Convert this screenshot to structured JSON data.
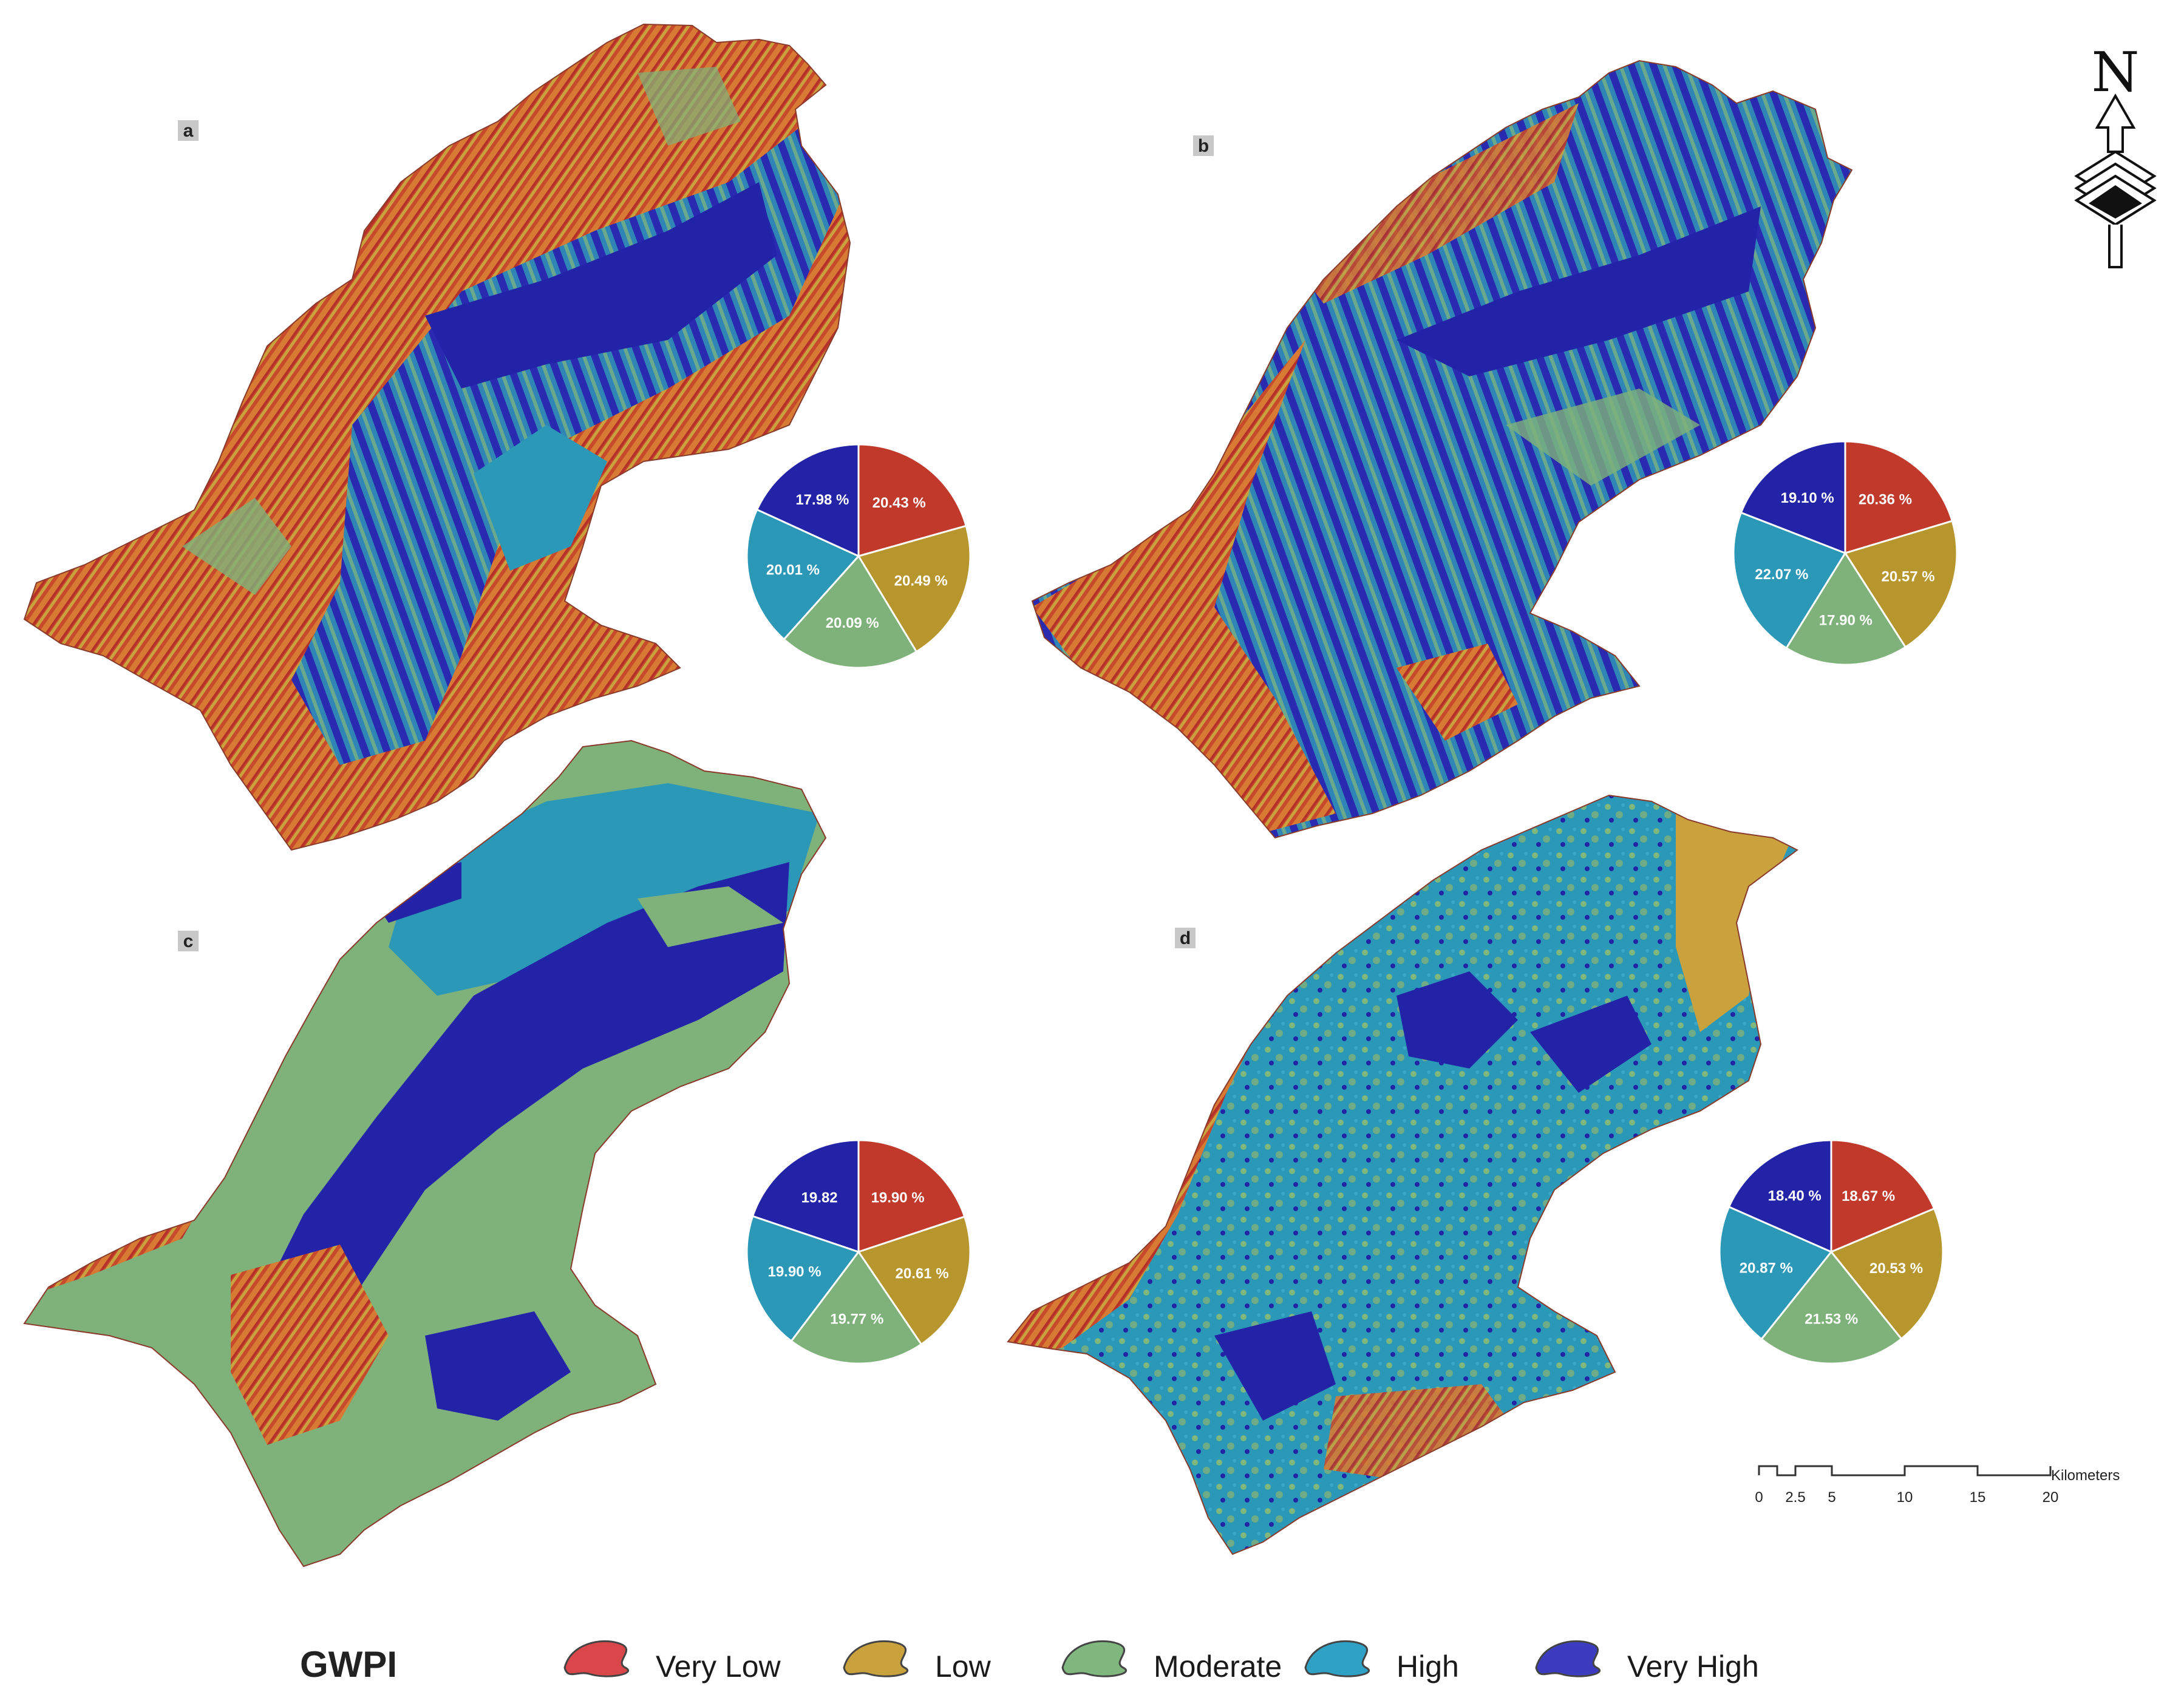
{
  "colors": {
    "very_low": "#c0392b",
    "low": "#b8962e",
    "moderate": "#7fb27a",
    "high": "#2b98b8",
    "very_high": "#2323a8",
    "paper": "#ffffff"
  },
  "legend": {
    "title": "GWPI",
    "items": [
      {
        "label": "Very Low",
        "color": "#d9474b"
      },
      {
        "label": "Low",
        "color": "#c9a23e"
      },
      {
        "label": "Moderate",
        "color": "#7fb77e"
      },
      {
        "label": "High",
        "color": "#2fa1c4"
      },
      {
        "label": "Very High",
        "color": "#3c3cc0"
      }
    ]
  },
  "north_arrow": {
    "letter": "N",
    "icon": "north-arrow-icon"
  },
  "scale_bar": {
    "unit": "Kilometers",
    "ticks": [
      "0",
      "2.5",
      "5",
      "10",
      "15",
      "20"
    ],
    "tick_values": [
      0,
      2.5,
      5,
      10,
      15,
      20
    ]
  },
  "panels": [
    {
      "letter": "a",
      "pie_labels": [
        "20.43 %",
        "20.49 %",
        "20.09 %",
        "20.01 %",
        "17.98 %"
      ]
    },
    {
      "letter": "b",
      "pie_labels": [
        "20.36 %",
        "20.57 %",
        "17.90 %",
        "22.07 %",
        "19.10 %"
      ]
    },
    {
      "letter": "c",
      "pie_labels": [
        "19.90 %",
        "20.61 %",
        "19.77 %",
        "19.90 %",
        "19.82"
      ]
    },
    {
      "letter": "d",
      "pie_labels": [
        "18.67 %",
        "20.53 %",
        "21.53 %",
        "20.87 %",
        "18.40 %"
      ]
    }
  ],
  "chart_data": [
    {
      "type": "pie",
      "panel": "a",
      "categories": [
        "Very Low",
        "Low",
        "Moderate",
        "High",
        "Very High"
      ],
      "values": [
        20.43,
        20.49,
        20.09,
        20.01,
        17.98
      ]
    },
    {
      "type": "pie",
      "panel": "b",
      "categories": [
        "Very Low",
        "Low",
        "Moderate",
        "High",
        "Very High"
      ],
      "values": [
        20.36,
        20.57,
        17.9,
        22.07,
        19.1
      ]
    },
    {
      "type": "pie",
      "panel": "c",
      "categories": [
        "Very Low",
        "Low",
        "Moderate",
        "High",
        "Very High"
      ],
      "values": [
        19.9,
        20.61,
        19.77,
        19.9,
        19.82
      ]
    },
    {
      "type": "pie",
      "panel": "d",
      "categories": [
        "Very Low",
        "Low",
        "Moderate",
        "High",
        "Very High"
      ],
      "values": [
        18.67,
        20.53,
        21.53,
        20.87,
        18.4
      ]
    }
  ]
}
